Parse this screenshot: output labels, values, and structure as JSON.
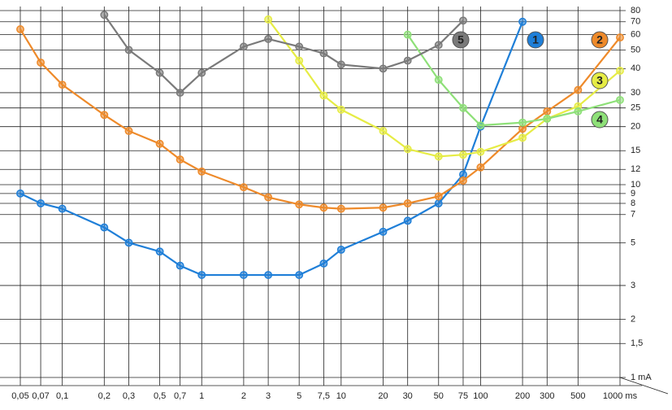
{
  "chart_data": {
    "type": "line",
    "xscale": "log",
    "yscale": "log",
    "grid": true,
    "x": [
      0.05,
      0.07,
      0.1,
      0.2,
      0.3,
      0.5,
      0.7,
      1,
      2,
      3,
      5,
      7.5,
      10,
      20,
      30,
      50,
      75,
      100,
      200,
      300,
      500,
      1000
    ],
    "xlim": [
      0.05,
      1000
    ],
    "xticks": [
      {
        "value": 0.05,
        "label": "0,05"
      },
      {
        "value": 0.07,
        "label": "0,07"
      },
      {
        "value": 0.1,
        "label": "0,1"
      },
      {
        "value": 0.2,
        "label": "0,2"
      },
      {
        "value": 0.3,
        "label": "0,3"
      },
      {
        "value": 0.5,
        "label": "0,5"
      },
      {
        "value": 0.7,
        "label": "0,7"
      },
      1,
      2,
      3,
      5,
      {
        "value": 7.5,
        "label": "7,5"
      },
      10,
      20,
      30,
      50,
      75,
      100,
      200,
      300,
      500,
      {
        "value": 1000,
        "label": "1000 ms"
      }
    ],
    "ylim": [
      1,
      80
    ],
    "yticks": [
      {
        "value": 1,
        "label": "1 mA"
      },
      {
        "value": 1.5,
        "label": "1,5"
      },
      2,
      3,
      5,
      7,
      8,
      9,
      10,
      12,
      15,
      20,
      25,
      30,
      40,
      50,
      60,
      70,
      80
    ],
    "series": [
      {
        "name": "1",
        "color": "#1f7fd8",
        "values": [
          9,
          8,
          7.5,
          6,
          5,
          4.5,
          3.8,
          3.4,
          3.4,
          3.4,
          3.4,
          3.9,
          4.6,
          5.7,
          6.5,
          8,
          11.3,
          20,
          70,
          null,
          null,
          null
        ]
      },
      {
        "name": "2",
        "color": "#ee8a2a",
        "values": [
          64,
          43,
          33,
          23,
          19,
          16.3,
          13.5,
          11.7,
          9.7,
          8.6,
          7.9,
          7.6,
          7.5,
          7.6,
          8,
          8.7,
          10.5,
          12.3,
          19.5,
          24,
          31,
          58
        ]
      },
      {
        "name": "3",
        "color": "#e6ec45",
        "values": [
          null,
          null,
          null,
          null,
          null,
          null,
          null,
          null,
          null,
          72,
          44,
          29,
          24.5,
          19,
          15.3,
          14,
          14.3,
          14.8,
          17.5,
          22,
          25.5,
          39
        ]
      },
      {
        "name": "4",
        "color": "#8ee078",
        "values": [
          null,
          null,
          null,
          null,
          null,
          null,
          null,
          null,
          null,
          null,
          null,
          null,
          null,
          null,
          60,
          35,
          25,
          20.3,
          21,
          22,
          24,
          27.5
        ]
      },
      {
        "name": "5",
        "color": "#7a7a7a",
        "values": [
          null,
          null,
          null,
          76,
          50,
          38,
          30,
          38,
          52,
          57,
          52,
          48,
          42,
          40,
          44,
          53,
          71,
          null,
          null,
          null,
          null,
          null
        ]
      }
    ]
  }
}
